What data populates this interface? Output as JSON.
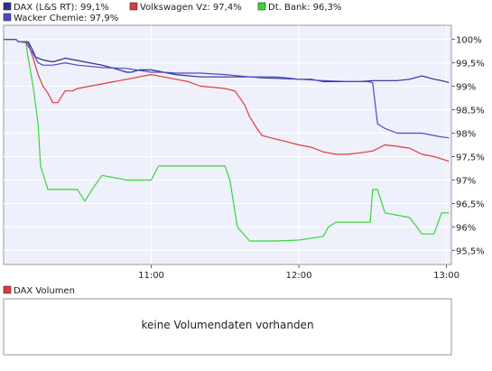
{
  "legend": [
    {
      "label": "DAX (L&S RT): 99,1%",
      "color": "#2a2f8f"
    },
    {
      "label": "Volkswagen Vz: 97,4%",
      "color": "#e03a3a"
    },
    {
      "label": "Dt. Bank: 96,3%",
      "color": "#39d639"
    },
    {
      "label": "Wacker Chemie: 97,9%",
      "color": "#4a4ac8"
    }
  ],
  "volume": {
    "legend_label": "DAX Volumen",
    "legend_color": "#e03a3a",
    "message": "keine Volumendaten vorhanden"
  },
  "chart_data": {
    "type": "line",
    "x_tick_labels": [
      "11:00",
      "12:00",
      "13:00"
    ],
    "x_tick_values": [
      660,
      720,
      780
    ],
    "xlim": [
      600,
      782
    ],
    "y_tick_labels": [
      "95,5%",
      "96%",
      "96,5%",
      "97%",
      "97,5%",
      "98%",
      "98,5%",
      "99%",
      "99,5%",
      "100%"
    ],
    "y_tick_values": [
      95.5,
      96,
      96.5,
      97,
      97.5,
      98,
      98.5,
      99,
      99.5,
      100
    ],
    "ylim": [
      95.2,
      100.3
    ],
    "grid": true,
    "legend_position": "top",
    "series": [
      {
        "name": "DAX (L&S RT)",
        "color": "#2a2f8f",
        "x": [
          600,
          605,
          606,
          610,
          612,
          613,
          615,
          617,
          620,
          622,
          624,
          625,
          630,
          635,
          640,
          645,
          650,
          652,
          655,
          660,
          665,
          670,
          680,
          690,
          700,
          705,
          710,
          715,
          720,
          725,
          730,
          740,
          745,
          750,
          755,
          760,
          765,
          770,
          775,
          778,
          781
        ],
        "y": [
          100,
          100,
          99.95,
          99.95,
          99.75,
          99.62,
          99.58,
          99.55,
          99.52,
          99.55,
          99.58,
          99.6,
          99.55,
          99.5,
          99.45,
          99.38,
          99.3,
          99.3,
          99.35,
          99.35,
          99.3,
          99.25,
          99.2,
          99.2,
          99.2,
          99.18,
          99.17,
          99.16,
          99.15,
          99.15,
          99.1,
          99.1,
          99.1,
          99.12,
          99.12,
          99.12,
          99.15,
          99.22,
          99.15,
          99.12,
          99.08
        ]
      },
      {
        "name": "Volkswagen Vz",
        "color": "#e03a3a",
        "x": [
          600,
          605,
          606,
          610,
          612,
          614,
          616,
          618,
          620,
          622,
          625,
          628,
          630,
          635,
          640,
          645,
          650,
          655,
          660,
          665,
          670,
          675,
          680,
          685,
          690,
          694,
          698,
          700,
          703,
          705,
          710,
          715,
          720,
          725,
          730,
          735,
          740,
          745,
          750,
          755,
          760,
          765,
          770,
          775,
          778,
          781
        ],
        "y": [
          100,
          100,
          99.95,
          99.92,
          99.6,
          99.25,
          99.0,
          98.85,
          98.65,
          98.65,
          98.9,
          98.9,
          98.95,
          99.0,
          99.05,
          99.1,
          99.15,
          99.2,
          99.25,
          99.2,
          99.15,
          99.1,
          99.0,
          98.98,
          98.95,
          98.9,
          98.6,
          98.35,
          98.1,
          97.95,
          97.88,
          97.82,
          97.75,
          97.7,
          97.6,
          97.55,
          97.55,
          97.58,
          97.62,
          97.75,
          97.72,
          97.68,
          97.55,
          97.5,
          97.45,
          97.4
        ]
      },
      {
        "name": "Dt. Bank",
        "color": "#39d639",
        "x": [
          600,
          605,
          606,
          609,
          610,
          612,
          614,
          615,
          618,
          620,
          625,
          630,
          633,
          636,
          640,
          650,
          660,
          663,
          670,
          680,
          690,
          692,
          695,
          700,
          710,
          720,
          730,
          732,
          735,
          740,
          745,
          749,
          750,
          752,
          755,
          760,
          765,
          768,
          770,
          775,
          778,
          781
        ],
        "y": [
          100,
          100,
          99.95,
          99.95,
          99.6,
          99.0,
          98.2,
          97.3,
          96.8,
          96.8,
          96.8,
          96.8,
          96.55,
          96.8,
          97.1,
          97.0,
          97.0,
          97.3,
          97.3,
          97.3,
          97.3,
          97.0,
          96.0,
          95.7,
          95.7,
          95.72,
          95.8,
          96.0,
          96.1,
          96.1,
          96.1,
          96.1,
          96.8,
          96.8,
          96.3,
          96.25,
          96.2,
          96.0,
          95.85,
          95.85,
          96.3,
          96.3
        ]
      },
      {
        "name": "Wacker Chemie",
        "color": "#4a4ac8",
        "x": [
          600,
          605,
          606,
          609,
          610,
          612,
          614,
          616,
          620,
          625,
          630,
          640,
          650,
          660,
          665,
          670,
          680,
          690,
          700,
          710,
          715,
          720,
          730,
          740,
          745,
          748,
          750,
          752,
          755,
          760,
          770,
          775,
          778,
          781
        ],
        "y": [
          100,
          100,
          99.95,
          99.95,
          99.85,
          99.7,
          99.5,
          99.45,
          99.45,
          99.5,
          99.45,
          99.4,
          99.38,
          99.3,
          99.3,
          99.28,
          99.28,
          99.25,
          99.2,
          99.2,
          99.18,
          99.15,
          99.12,
          99.1,
          99.1,
          99.1,
          99.08,
          98.2,
          98.1,
          98.0,
          98.0,
          97.95,
          97.92,
          97.9
        ]
      }
    ]
  }
}
